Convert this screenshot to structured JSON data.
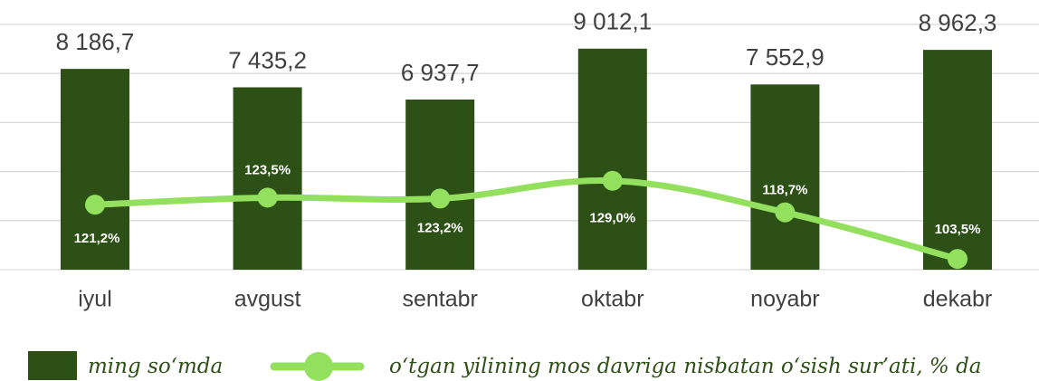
{
  "chart_data": {
    "type": "bar",
    "categories": [
      "iyul",
      "avgust",
      "sentabr",
      "oktabr",
      "noyabr",
      "dekabr"
    ],
    "series": [
      {
        "name": "ming so‘mda",
        "type": "bar",
        "color": "#2d5016",
        "values": [
          8186.7,
          7435.2,
          6937.7,
          9012.1,
          7552.9,
          8962.3
        ],
        "value_labels": [
          "8 186,7",
          "7 435,2",
          "6 937,7",
          "9 012,1",
          "7 552,9",
          "8 962,3"
        ]
      },
      {
        "name": "o‘tgan yilining mos davriga nisbatan o‘sish sur’ati, % da",
        "type": "line",
        "axis": "y2",
        "color": "#92e05e",
        "values": [
          121.2,
          123.5,
          123.2,
          129.0,
          118.7,
          103.5
        ],
        "value_labels": [
          "121,2%",
          "123,5%",
          "123,2%",
          "129,0%",
          "118,7%",
          "103,5%"
        ]
      }
    ],
    "ylim": [
      0,
      10000
    ],
    "yticks": [
      0,
      2000,
      4000,
      6000,
      8000,
      10000
    ],
    "y2lim": [
      100,
      180
    ],
    "grid": true,
    "legend": "bottom"
  }
}
